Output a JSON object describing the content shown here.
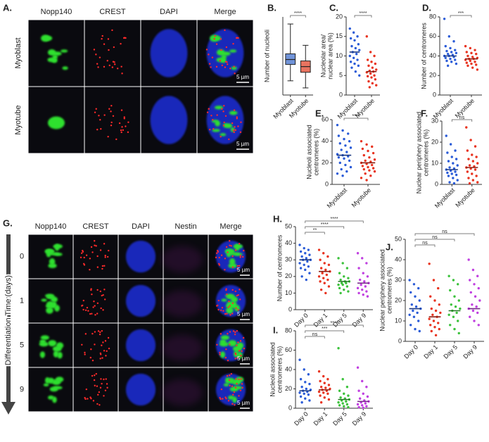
{
  "images": [
    {
      "panel": "A.",
      "columns": [
        "Nopp140",
        "CREST",
        "DAPI",
        "Merge"
      ],
      "rows": [
        "Myoblast",
        "Myotube"
      ],
      "scale_bar": "5 µm"
    },
    {
      "panel": "G.",
      "columns": [
        "Nopp140",
        "CREST",
        "DAPI",
        "Nestin",
        "Merge"
      ],
      "rows": [
        "0",
        "1",
        "5",
        "9"
      ],
      "axis_label": "Differentiation Time (days)",
      "scale_bar": "5 µm"
    }
  ],
  "chart_data": [
    {
      "type": "box",
      "panel": "B.",
      "ylabel": [
        "Number of nucleoli"
      ],
      "categories": [
        "Myoblast",
        "Myotube"
      ],
      "colors": [
        "#7093d8",
        "#e8735f"
      ],
      "min": [
        2,
        1
      ],
      "q1": [
        4.3,
        3.2
      ],
      "median": [
        5,
        4
      ],
      "q3": [
        5.8,
        4.8
      ],
      "max": [
        10,
        7
      ],
      "ylim": [
        0,
        11
      ],
      "annotations": [
        "****"
      ]
    },
    {
      "type": "dot",
      "panel": "C.",
      "ylabel": [
        "Nucleolar area/",
        "nuclear area (%)"
      ],
      "categories": [
        "Myoblast",
        "Myotube"
      ],
      "colors": [
        "#2a5bd7",
        "#e8331f"
      ],
      "values": [
        [
          17,
          16,
          15,
          14.5,
          14,
          13,
          12.5,
          12,
          11.5,
          11,
          10.5,
          10,
          9.5,
          9,
          8.5,
          8,
          7.5,
          7,
          6,
          5
        ],
        [
          15,
          11,
          10,
          9,
          8.5,
          8,
          7.5,
          7,
          6.5,
          6.2,
          6,
          5.8,
          5.5,
          5,
          4.8,
          4.5,
          4,
          3.5,
          3,
          2.5,
          2
        ]
      ],
      "medians": [
        11,
        6
      ],
      "ylim": [
        0,
        20
      ],
      "yticks": [
        0,
        5,
        10,
        15,
        20
      ],
      "annotations": [
        "****"
      ]
    },
    {
      "type": "dot",
      "panel": "D.",
      "ylabel": [
        "Number of centromeres"
      ],
      "categories": [
        "Myoblast",
        "Myotube"
      ],
      "colors": [
        "#2a5bd7",
        "#e8331f"
      ],
      "values": [
        [
          78,
          60,
          55,
          50,
          48,
          46,
          45,
          44,
          43,
          42,
          41,
          40,
          40,
          39,
          38,
          37,
          36,
          35,
          34,
          32,
          30
        ],
        [
          50,
          48,
          46,
          44,
          43,
          42,
          40,
          39,
          38,
          37,
          37,
          36,
          35,
          34,
          33,
          32,
          31,
          30,
          28,
          26
        ]
      ],
      "medians": [
        40,
        37
      ],
      "ylim": [
        0,
        80
      ],
      "yticks": [
        0,
        20,
        40,
        60,
        80
      ],
      "annotations": [
        "***"
      ]
    },
    {
      "type": "dot",
      "panel": "E.",
      "ylabel": [
        "Nucleoli associated",
        "centromeres (%)"
      ],
      "categories": [
        "Myoblast",
        "Myotube"
      ],
      "colors": [
        "#2a5bd7",
        "#e8331f"
      ],
      "values": [
        [
          55,
          50,
          47,
          45,
          42,
          40,
          38,
          36,
          34,
          32,
          30,
          28,
          27,
          26,
          25,
          24,
          22,
          20,
          18,
          16,
          14,
          12,
          10,
          8
        ],
        [
          40,
          37,
          35,
          33,
          31,
          29,
          27,
          25,
          23,
          22,
          21,
          20,
          19,
          18,
          17,
          16,
          15,
          14,
          13,
          12,
          10,
          8,
          6,
          4
        ]
      ],
      "medians": [
        27,
        20
      ],
      "ylim": [
        0,
        60
      ],
      "yticks": [
        0,
        20,
        40,
        60
      ],
      "annotations": [
        "****"
      ]
    },
    {
      "type": "dot",
      "panel": "F.",
      "ylabel": [
        "Nuclear periphery associated",
        "centromeres (%)"
      ],
      "categories": [
        "Myoblast",
        "Myotube"
      ],
      "colors": [
        "#2a5bd7",
        "#e8331f"
      ],
      "values": [
        [
          23,
          19,
          16,
          15,
          13,
          12,
          11,
          10,
          9,
          8,
          7.5,
          7,
          6.5,
          6,
          5.5,
          5,
          4.5,
          4,
          3,
          2,
          1,
          0.5
        ],
        [
          27,
          21,
          18,
          16,
          14,
          13,
          12,
          11,
          10,
          9,
          8.5,
          8,
          7.5,
          7,
          6,
          5,
          4,
          3,
          2,
          1,
          0.5
        ]
      ],
      "medians": [
        7,
        8
      ],
      "ylim": [
        0,
        30
      ],
      "yticks": [
        0,
        10,
        20,
        30
      ],
      "annotations": [
        "ns"
      ]
    },
    {
      "type": "dot",
      "panel": "H.",
      "ylabel": [
        "Number of centromeres"
      ],
      "categories": [
        "Day 0",
        "Day 1",
        "Day 5",
        "Day 9"
      ],
      "colors": [
        "#2a5bd7",
        "#e8331f",
        "#3cc23c",
        "#c040e0"
      ],
      "values": [
        [
          39,
          37,
          36,
          35,
          34,
          33,
          32,
          31,
          30,
          30,
          29,
          28,
          27,
          26,
          25,
          24,
          22,
          20,
          18
        ],
        [
          36,
          34,
          32,
          30,
          28,
          27,
          25,
          24,
          23,
          22,
          21,
          20,
          19,
          18,
          17,
          16,
          14,
          12,
          10
        ],
        [
          31,
          28,
          25,
          22,
          20,
          19,
          18,
          17,
          17,
          16,
          16,
          15,
          15,
          14,
          13,
          12,
          11,
          10
        ],
        [
          34,
          31,
          28,
          25,
          22,
          20,
          18,
          17,
          16,
          15,
          14,
          13,
          12,
          11,
          10,
          9,
          8
        ]
      ],
      "medians": [
        30,
        23,
        17,
        16
      ],
      "ylim": [
        0,
        50
      ],
      "yticks": [
        0,
        10,
        20,
        30,
        40,
        50
      ],
      "annotations": [
        "**",
        "****",
        "****"
      ]
    },
    {
      "type": "dot",
      "panel": "I.",
      "ylabel": [
        "Nucleoli associated",
        "centromeres (%)"
      ],
      "categories": [
        "Day 0",
        "Day 1",
        "Day 5",
        "Day 9"
      ],
      "colors": [
        "#2a5bd7",
        "#e8331f",
        "#3cc23c",
        "#c040e0"
      ],
      "values": [
        [
          50,
          40,
          35,
          30,
          27,
          25,
          22,
          20,
          19,
          18,
          17,
          16,
          15,
          14,
          12,
          10,
          8,
          6
        ],
        [
          38,
          33,
          30,
          28,
          26,
          24,
          22,
          21,
          20,
          19,
          18,
          17,
          16,
          15,
          13,
          11,
          9,
          6
        ],
        [
          62,
          30,
          22,
          18,
          15,
          13,
          11,
          10,
          9,
          8,
          7,
          6,
          5,
          4,
          3,
          2,
          1
        ],
        [
          42,
          28,
          22,
          18,
          15,
          12,
          10,
          8,
          7,
          6,
          5,
          4,
          3,
          2,
          1,
          0.5
        ]
      ],
      "medians": [
        18,
        19,
        9,
        7
      ],
      "ylim": [
        0,
        80
      ],
      "yticks": [
        0,
        20,
        40,
        60,
        80
      ],
      "annotations": [
        "ns",
        "***",
        "****"
      ]
    },
    {
      "type": "dot",
      "panel": "J.",
      "ylabel": [
        "Nuclear periphery associated",
        "centromeres (%)"
      ],
      "categories": [
        "Day 0",
        "Day 1",
        "Day 5",
        "Day 9"
      ],
      "colors": [
        "#2a5bd7",
        "#e8331f",
        "#3cc23c",
        "#c040e0"
      ],
      "values": [
        [
          30,
          28,
          26,
          24,
          22,
          20,
          18,
          17,
          16,
          15,
          14,
          13,
          12,
          10,
          8,
          6,
          5
        ],
        [
          38,
          30,
          26,
          22,
          20,
          18,
          16,
          15,
          14,
          13,
          12,
          11,
          10,
          9,
          8,
          7,
          6,
          5,
          3
        ],
        [
          32,
          30,
          28,
          25,
          22,
          20,
          18,
          17,
          16,
          15,
          14,
          13,
          12,
          10,
          8,
          6,
          4
        ],
        [
          40,
          35,
          32,
          30,
          28,
          26,
          24,
          22,
          20,
          18,
          17,
          16,
          15,
          14,
          12,
          10,
          8
        ]
      ],
      "medians": [
        16,
        12,
        15,
        16
      ],
      "ylim": [
        0,
        50
      ],
      "yticks": [
        0,
        10,
        20,
        30,
        40,
        50
      ],
      "annotations": [
        "ns",
        "ns",
        "ns"
      ]
    }
  ]
}
